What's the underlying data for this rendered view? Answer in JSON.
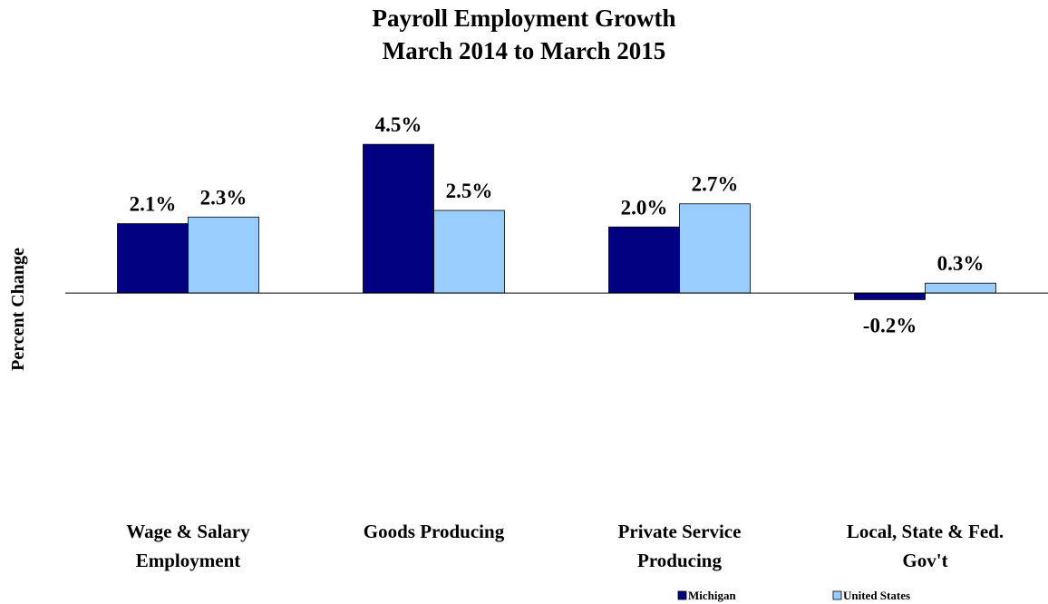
{
  "chart_data": {
    "type": "bar",
    "title": [
      "Payroll Employment Growth",
      "March 2014 to March 2015"
    ],
    "ylabel": "Percent Change",
    "categories": [
      [
        "Wage & Salary",
        "Employment"
      ],
      [
        "Goods Producing"
      ],
      [
        "Private Service",
        "Producing"
      ],
      [
        "Local, State & Fed.",
        "Gov't"
      ]
    ],
    "series": [
      {
        "name": "Michigan",
        "color": "#000080",
        "values": [
          2.1,
          4.5,
          2.0,
          -0.2
        ],
        "labels": [
          "2.1%",
          "4.5%",
          "2.0%",
          "-0.2%"
        ]
      },
      {
        "name": "United States",
        "color": "#99ccff",
        "values": [
          2.3,
          2.5,
          2.7,
          0.3
        ],
        "labels": [
          "2.3%",
          "2.5%",
          "2.7%",
          "0.3%"
        ]
      }
    ],
    "ylim": [
      -6.5,
      5.3
    ],
    "grid": false,
    "legend_position": "bottom-right"
  }
}
